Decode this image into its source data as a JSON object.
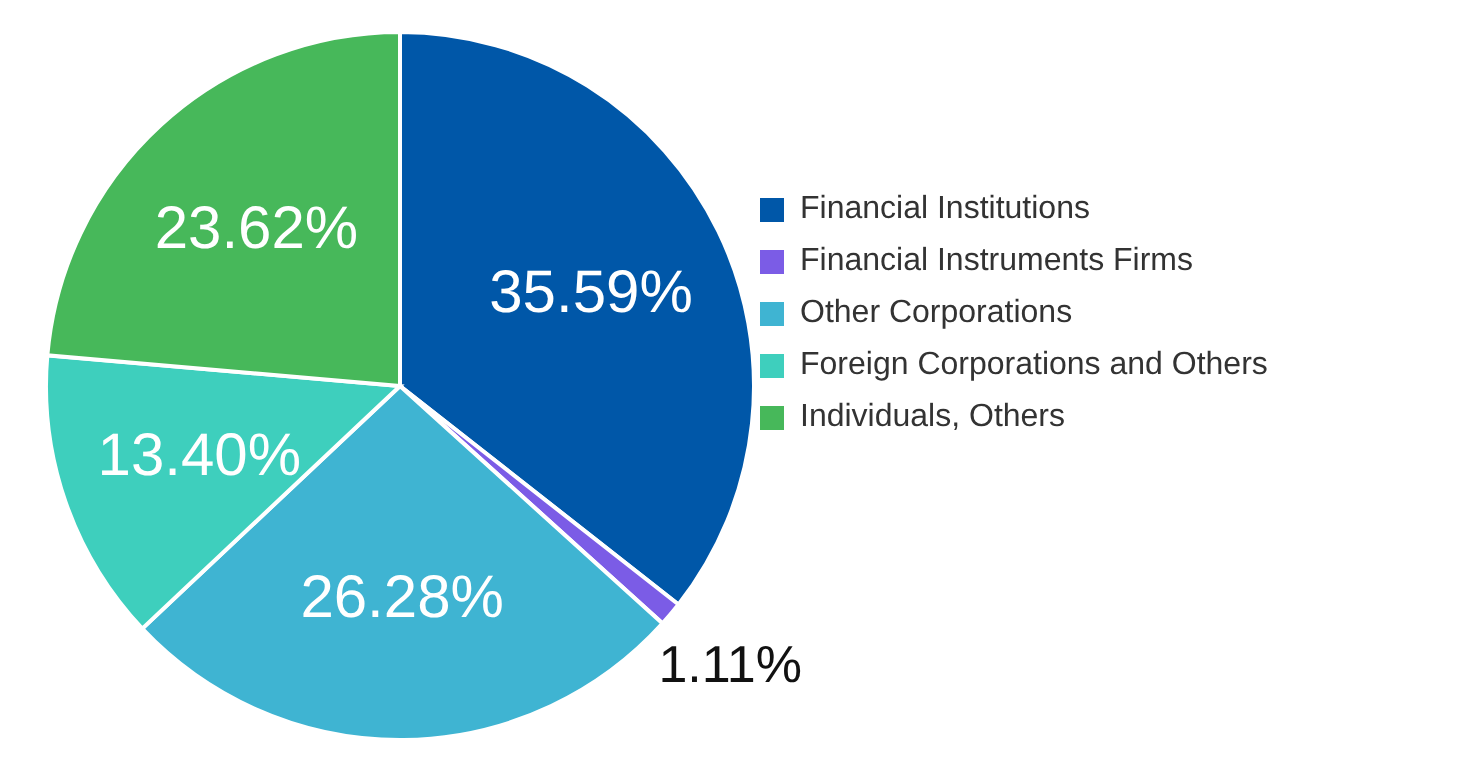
{
  "chart_data": {
    "type": "pie",
    "categories": [
      "Financial Institutions",
      "Financial Instruments Firms",
      "Other Corporations",
      "Foreign Corporations and Others",
      "Individuals, Others"
    ],
    "values": [
      35.59,
      1.11,
      26.28,
      13.4,
      23.62
    ],
    "colors": [
      "#0057a8",
      "#7b5ce6",
      "#3fb4d2",
      "#3ecfbd",
      "#47b85a"
    ],
    "value_labels": [
      "35.59%",
      "1.11%",
      "26.28%",
      "13.40%",
      "23.62%"
    ],
    "legend": "right"
  }
}
